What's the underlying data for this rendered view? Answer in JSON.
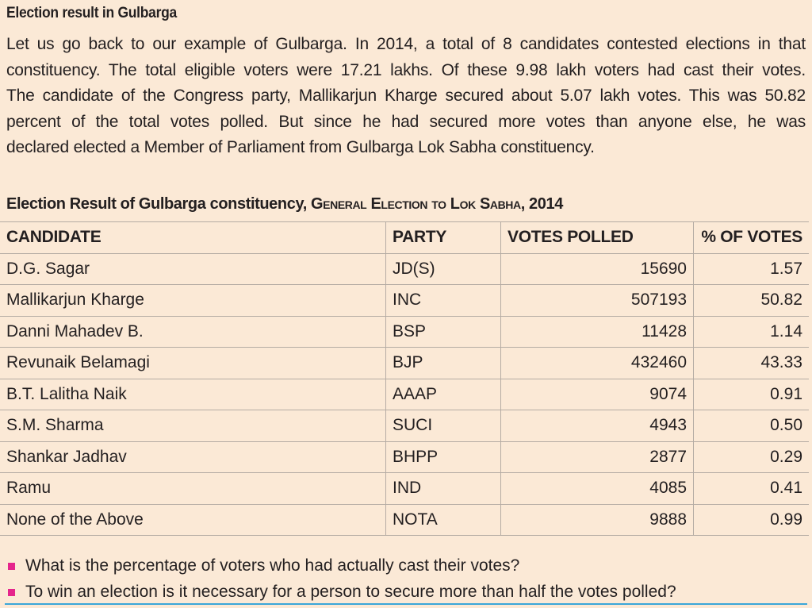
{
  "heading": "Election result in Gulbarga",
  "paragraph_lines": [
    "Let us go back to our example of Gulbarga. In 2014, a total of 8 candidates contested elections in that",
    "constituency. The total eligible voters were 17.21 lakhs. Of these 9.98 lakh voters had cast their votes.",
    "The candidate of the Congress party, Mallikarjun Kharge secured about 5.07 lakh votes. This was 50.82",
    "percent of the total votes polled. But since he had secured more votes than anyone else, he was",
    "declared elected a Member of Parliament from Gulbarga Lok Sabha constituency."
  ],
  "table_title": {
    "main": "Election Result of Gulbarga constituency, ",
    "sub": "General Election to Lok Sabha",
    "year": ", 2014"
  },
  "table": {
    "headers": [
      "CANDIDATE",
      "PARTY",
      "VOTES POLLED",
      "% OF VOTES"
    ],
    "rows": [
      {
        "candidate": "D.G. Sagar",
        "party": "JD(S)",
        "votes": "15690",
        "pct": "1.57"
      },
      {
        "candidate": "Mallikarjun Kharge",
        "party": "INC",
        "votes": "507193",
        "pct": "50.82"
      },
      {
        "candidate": "Danni Mahadev B.",
        "party": "BSP",
        "votes": "11428",
        "pct": "1.14"
      },
      {
        "candidate": "Revunaik Belamagi",
        "party": "BJP",
        "votes": "432460",
        "pct": "43.33"
      },
      {
        "candidate": "B.T. Lalitha Naik",
        "party": "AAAP",
        "votes": "9074",
        "pct": "0.91"
      },
      {
        "candidate": "S.M. Sharma",
        "party": "SUCI",
        "votes": "4943",
        "pct": "0.50"
      },
      {
        "candidate": "Shankar Jadhav",
        "party": "BHPP",
        "votes": "2877",
        "pct": "0.29"
      },
      {
        "candidate": "Ramu",
        "party": "IND",
        "votes": "4085",
        "pct": "0.41"
      },
      {
        "candidate": "None of the Above",
        "party": "NOTA",
        "votes": "9888",
        "pct": "0.99"
      }
    ]
  },
  "questions": [
    "What is the percentage of voters who had actually cast their votes?",
    "To win an election is it necessary for a person to secure more than half the votes polled?"
  ],
  "colors": {
    "background": "#fbe9d6",
    "bullet": "#e5258c",
    "rule": "#3aa6d8",
    "text": "#231f20"
  }
}
